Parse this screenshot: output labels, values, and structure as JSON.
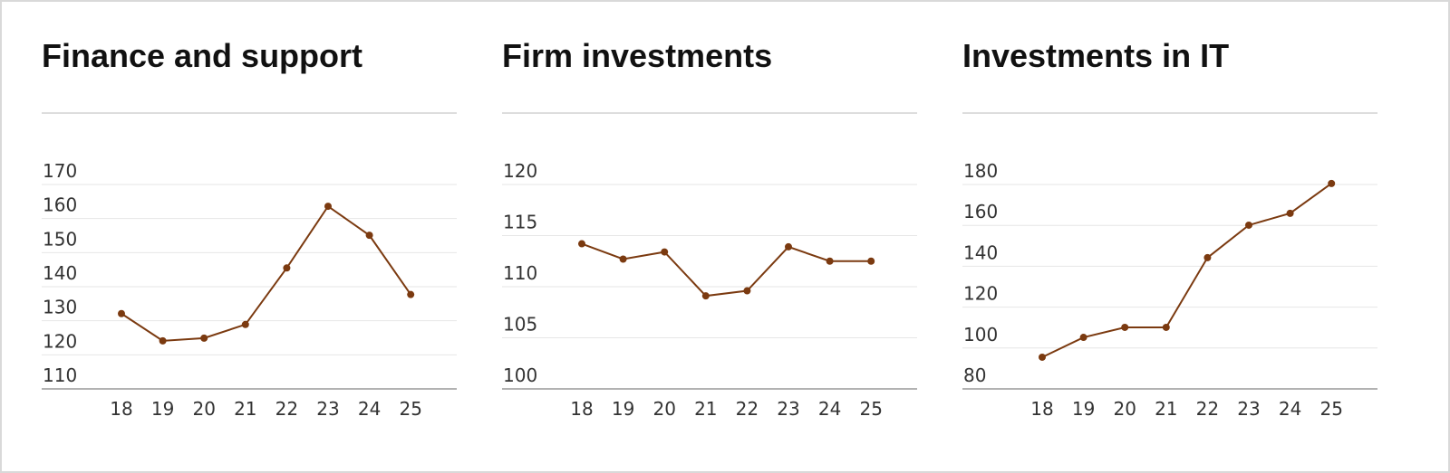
{
  "chart_data": [
    {
      "type": "line",
      "title": "Finance and support",
      "categories": [
        "18",
        "19",
        "20",
        "21",
        "22",
        "23",
        "24",
        "25"
      ],
      "series": [
        {
          "color": "#7b3a10",
          "values": [
            132.1,
            124.1,
            124.9,
            128.9,
            145.5,
            163.6,
            155.1,
            137.7
          ]
        }
      ],
      "ylim": [
        110,
        170
      ],
      "yticks": [
        110,
        120,
        130,
        140,
        150,
        160,
        170
      ],
      "grid": true
    },
    {
      "type": "line",
      "title": "Firm investments",
      "categories": [
        "18",
        "19",
        "20",
        "21",
        "22",
        "23",
        "24",
        "25"
      ],
      "series": [
        {
          "color": "#7b3a10",
          "values": [
            114.2,
            112.7,
            113.4,
            109.1,
            109.6,
            113.9,
            112.5,
            112.5
          ]
        }
      ],
      "ylim": [
        100,
        120
      ],
      "yticks": [
        100,
        105,
        110,
        115,
        120
      ],
      "grid": true
    },
    {
      "type": "line",
      "title": "Investments in IT",
      "categories": [
        "18",
        "19",
        "20",
        "21",
        "22",
        "23",
        "24",
        "25"
      ],
      "series": [
        {
          "color": "#7b3a10",
          "values": [
            95.5,
            105.2,
            110.1,
            110.1,
            144.2,
            160.1,
            165.9,
            180.5
          ]
        }
      ],
      "ylim": [
        80,
        180
      ],
      "yticks": [
        80,
        100,
        120,
        140,
        160,
        180
      ],
      "grid": true
    }
  ]
}
